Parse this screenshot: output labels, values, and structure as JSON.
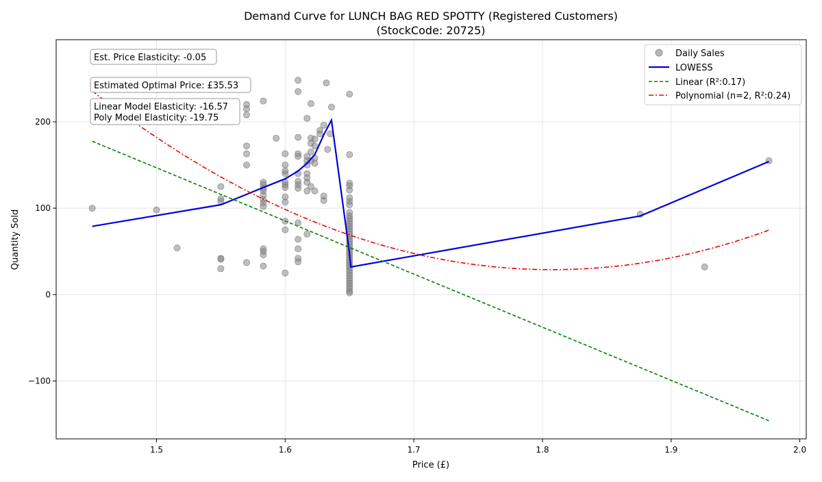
{
  "chart_data": {
    "type": "scatter",
    "title": "Demand Curve for LUNCH BAG RED SPOTTY (Registered Customers)",
    "subtitle": "(StockCode: 20725)",
    "xlabel": "Price (£)",
    "ylabel": "Quantity Sold",
    "xlim": [
      1.422,
      2.005
    ],
    "ylim": [
      -167,
      295
    ],
    "xticks": [
      1.5,
      1.6,
      1.7,
      1.8,
      1.9,
      2.0
    ],
    "xtick_labels": [
      "1.5",
      "1.6",
      "1.7",
      "1.8",
      "1.9",
      "2.0"
    ],
    "yticks": [
      -100,
      0,
      100,
      200
    ],
    "ytick_labels": [
      "−100",
      "0",
      "100",
      "200"
    ],
    "grid": true,
    "legend_position": "top-right",
    "legend": [
      {
        "label": "Daily Sales",
        "style": "marker",
        "color": "#808080"
      },
      {
        "label": "LOWESS",
        "style": "solid",
        "color": "#0000dd"
      },
      {
        "label": "Linear (R²:0.17)",
        "style": "dashed",
        "color": "#008000"
      },
      {
        "label": "Polynomial (n=2, R²:0.24)",
        "style": "dashdot",
        "color": "#ee0000"
      }
    ],
    "annotations": [
      "Est. Price Elasticity: -0.05",
      "Estimated Optimal Price: £35.53",
      "Linear Model Elasticity: -16.57",
      "Poly Model Elasticity: -19.75"
    ],
    "series": [
      {
        "name": "Daily Sales",
        "kind": "scatter",
        "color": "#808080",
        "points": [
          [
            1.45,
            100
          ],
          [
            1.5,
            98
          ],
          [
            1.516,
            54
          ],
          [
            1.55,
            125
          ],
          [
            1.55,
            111
          ],
          [
            1.55,
            108
          ],
          [
            1.55,
            42
          ],
          [
            1.55,
            41
          ],
          [
            1.55,
            30
          ],
          [
            1.57,
            220
          ],
          [
            1.57,
            215
          ],
          [
            1.57,
            208
          ],
          [
            1.57,
            172
          ],
          [
            1.57,
            163
          ],
          [
            1.57,
            150
          ],
          [
            1.57,
            37
          ],
          [
            1.583,
            224
          ],
          [
            1.583,
            130
          ],
          [
            1.583,
            127
          ],
          [
            1.583,
            123
          ],
          [
            1.583,
            120
          ],
          [
            1.583,
            115
          ],
          [
            1.583,
            110
          ],
          [
            1.583,
            106
          ],
          [
            1.583,
            102
          ],
          [
            1.583,
            53
          ],
          [
            1.583,
            50
          ],
          [
            1.583,
            46
          ],
          [
            1.583,
            33
          ],
          [
            1.593,
            181
          ],
          [
            1.6,
            163
          ],
          [
            1.6,
            150
          ],
          [
            1.6,
            143
          ],
          [
            1.6,
            140
          ],
          [
            1.6,
            130
          ],
          [
            1.6,
            127
          ],
          [
            1.6,
            124
          ],
          [
            1.6,
            113
          ],
          [
            1.6,
            107
          ],
          [
            1.6,
            85
          ],
          [
            1.6,
            75
          ],
          [
            1.6,
            25
          ],
          [
            1.61,
            248
          ],
          [
            1.61,
            235
          ],
          [
            1.61,
            182
          ],
          [
            1.61,
            163
          ],
          [
            1.61,
            160
          ],
          [
            1.61,
            140
          ],
          [
            1.61,
            131
          ],
          [
            1.61,
            127
          ],
          [
            1.61,
            123
          ],
          [
            1.61,
            83
          ],
          [
            1.61,
            64
          ],
          [
            1.61,
            53
          ],
          [
            1.61,
            42
          ],
          [
            1.61,
            38
          ],
          [
            1.617,
            204
          ],
          [
            1.617,
            160
          ],
          [
            1.617,
            155
          ],
          [
            1.617,
            150
          ],
          [
            1.617,
            140
          ],
          [
            1.617,
            135
          ],
          [
            1.617,
            130
          ],
          [
            1.617,
            120
          ],
          [
            1.617,
            70
          ],
          [
            1.62,
            221
          ],
          [
            1.62,
            181
          ],
          [
            1.62,
            175
          ],
          [
            1.62,
            165
          ],
          [
            1.62,
            155
          ],
          [
            1.62,
            125
          ],
          [
            1.623,
            180
          ],
          [
            1.623,
            172
          ],
          [
            1.623,
            158
          ],
          [
            1.623,
            152
          ],
          [
            1.623,
            120
          ],
          [
            1.627,
            190
          ],
          [
            1.627,
            186
          ],
          [
            1.63,
            196
          ],
          [
            1.63,
            114
          ],
          [
            1.63,
            109
          ],
          [
            1.632,
            245
          ],
          [
            1.633,
            168
          ],
          [
            1.635,
            186
          ],
          [
            1.636,
            217
          ],
          [
            1.65,
            232
          ],
          [
            1.65,
            162
          ],
          [
            1.65,
            129
          ],
          [
            1.65,
            126
          ],
          [
            1.65,
            121
          ],
          [
            1.65,
            112
          ],
          [
            1.65,
            108
          ],
          [
            1.65,
            104
          ],
          [
            1.65,
            95
          ],
          [
            1.65,
            91
          ],
          [
            1.65,
            88
          ],
          [
            1.65,
            85
          ],
          [
            1.65,
            82
          ],
          [
            1.65,
            79
          ],
          [
            1.65,
            76
          ],
          [
            1.65,
            73
          ],
          [
            1.65,
            70
          ],
          [
            1.65,
            67
          ],
          [
            1.65,
            64
          ],
          [
            1.65,
            61
          ],
          [
            1.65,
            58
          ],
          [
            1.65,
            55
          ],
          [
            1.65,
            52
          ],
          [
            1.65,
            49
          ],
          [
            1.65,
            46
          ],
          [
            1.65,
            43
          ],
          [
            1.65,
            40
          ],
          [
            1.65,
            37
          ],
          [
            1.65,
            34
          ],
          [
            1.65,
            31
          ],
          [
            1.65,
            28
          ],
          [
            1.65,
            25
          ],
          [
            1.65,
            22
          ],
          [
            1.65,
            19
          ],
          [
            1.65,
            16
          ],
          [
            1.65,
            13
          ],
          [
            1.65,
            10
          ],
          [
            1.65,
            7
          ],
          [
            1.65,
            4
          ],
          [
            1.65,
            2
          ],
          [
            1.876,
            93
          ],
          [
            1.926,
            32
          ],
          [
            1.976,
            155
          ]
        ]
      },
      {
        "name": "LOWESS",
        "kind": "line",
        "color": "#0000dd",
        "dash": "solid",
        "points": [
          [
            1.45,
            79
          ],
          [
            1.55,
            104
          ],
          [
            1.57,
            116
          ],
          [
            1.583,
            124
          ],
          [
            1.6,
            134
          ],
          [
            1.61,
            143
          ],
          [
            1.617,
            152
          ],
          [
            1.623,
            162
          ],
          [
            1.63,
            185
          ],
          [
            1.636,
            202
          ],
          [
            1.65,
            48
          ],
          [
            1.651,
            32
          ],
          [
            1.876,
            91
          ],
          [
            1.976,
            154
          ]
        ]
      },
      {
        "name": "Linear (R²:0.17)",
        "kind": "line",
        "color": "#008000",
        "dash": "dashed",
        "points": [
          [
            1.45,
            177.5
          ],
          [
            1.976,
            -146
          ]
        ]
      },
      {
        "name": "Polynomial (n=2, R²:0.24)",
        "kind": "poly2",
        "color": "#ee0000",
        "dash": "dashdot",
        "coefficients": [
          5310.6,
          -5843.6,
          1616.3
        ],
        "x_range": [
          1.45,
          1.976
        ]
      }
    ]
  }
}
